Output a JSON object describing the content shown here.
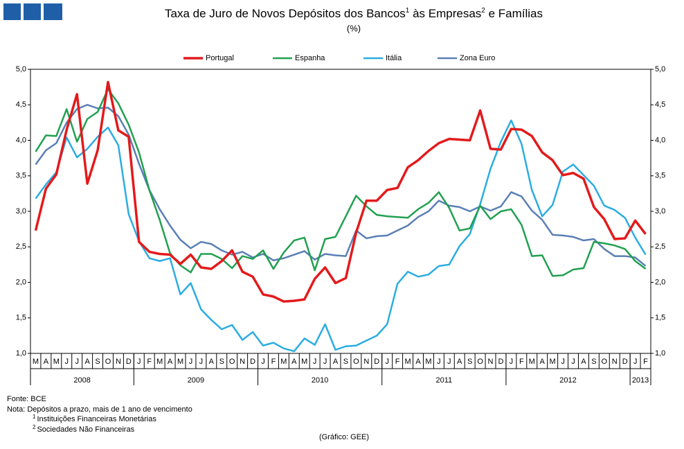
{
  "chart_data": {
    "type": "line",
    "title_parts": [
      "Taxa de Juro de Novos Depósitos dos Bancos",
      "1",
      " às Empresas",
      "2",
      " e Famílias"
    ],
    "subtitle": "(%)",
    "categories": [
      "M",
      "A",
      "M",
      "J",
      "J",
      "A",
      "S",
      "O",
      "N",
      "D",
      "J",
      "F",
      "M",
      "A",
      "M",
      "J",
      "J",
      "A",
      "S",
      "O",
      "N",
      "D",
      "J",
      "F",
      "M",
      "A",
      "M",
      "J",
      "J",
      "A",
      "S",
      "O",
      "N",
      "D",
      "J",
      "F",
      "M",
      "A",
      "M",
      "J",
      "J",
      "A",
      "S",
      "O",
      "N",
      "D",
      "J",
      "F",
      "M",
      "A",
      "M",
      "J",
      "J",
      "A",
      "S",
      "O",
      "N",
      "D",
      "J",
      "F"
    ],
    "years": [
      {
        "label": "2008",
        "months": 10
      },
      {
        "label": "2009",
        "months": 12
      },
      {
        "label": "2010",
        "months": 12
      },
      {
        "label": "2011",
        "months": 12
      },
      {
        "label": "2012",
        "months": 12
      },
      {
        "label": "2013",
        "months": 2
      }
    ],
    "series": [
      {
        "name": "Portugal",
        "color": "#e31a1c",
        "values": [
          2.73,
          3.32,
          3.52,
          4.15,
          4.65,
          3.39,
          3.86,
          4.82,
          4.14,
          4.05,
          2.57,
          2.43,
          2.4,
          2.39,
          2.26,
          2.39,
          2.21,
          2.19,
          2.3,
          2.45,
          2.15,
          2.08,
          1.83,
          1.8,
          1.73,
          1.74,
          1.76,
          2.05,
          2.21,
          1.99,
          2.06,
          2.7,
          3.15,
          3.15,
          3.3,
          3.33,
          3.62,
          3.72,
          3.85,
          3.96,
          4.02,
          4.01,
          4.0,
          4.42,
          3.88,
          3.87,
          4.16,
          4.15,
          4.06,
          3.83,
          3.72,
          3.51,
          3.54,
          3.46,
          3.06,
          2.89,
          2.61,
          2.62,
          2.87,
          2.68
        ]
      },
      {
        "name": "Espanha",
        "color": "#21a050",
        "values": [
          3.84,
          4.07,
          4.06,
          4.44,
          3.98,
          4.3,
          4.4,
          4.72,
          4.52,
          4.22,
          3.83,
          3.3,
          2.88,
          2.41,
          2.24,
          2.14,
          2.4,
          2.4,
          2.33,
          2.2,
          2.37,
          2.33,
          2.45,
          2.19,
          2.42,
          2.59,
          2.63,
          2.17,
          2.61,
          2.64,
          2.93,
          3.22,
          3.07,
          2.95,
          2.93,
          2.92,
          2.91,
          3.03,
          3.12,
          3.27,
          3.05,
          2.73,
          2.76,
          3.08,
          2.89,
          3.0,
          3.03,
          2.81,
          2.37,
          2.38,
          2.09,
          2.1,
          2.18,
          2.2,
          2.57,
          2.55,
          2.52,
          2.47,
          2.3,
          2.19
        ]
      },
      {
        "name": "Itália",
        "color": "#2aace2",
        "values": [
          3.18,
          3.38,
          3.55,
          4.04,
          3.76,
          3.88,
          4.05,
          4.18,
          3.93,
          2.96,
          2.58,
          2.34,
          2.3,
          2.34,
          1.83,
          1.99,
          1.62,
          1.47,
          1.34,
          1.4,
          1.19,
          1.3,
          1.11,
          1.15,
          1.07,
          1.03,
          1.21,
          1.12,
          1.41,
          1.05,
          1.1,
          1.11,
          1.18,
          1.25,
          1.41,
          1.98,
          2.15,
          2.08,
          2.11,
          2.23,
          2.25,
          2.51,
          2.68,
          3.1,
          3.6,
          3.98,
          4.28,
          3.95,
          3.3,
          2.93,
          3.09,
          3.56,
          3.66,
          3.51,
          3.36,
          3.08,
          3.02,
          2.91,
          2.63,
          2.39
        ]
      },
      {
        "name": "Zona Euro",
        "color": "#5a7fb5",
        "values": [
          3.66,
          3.86,
          3.96,
          4.25,
          4.44,
          4.5,
          4.45,
          4.46,
          4.34,
          4.08,
          3.67,
          3.3,
          3.03,
          2.8,
          2.6,
          2.48,
          2.57,
          2.54,
          2.45,
          2.39,
          2.43,
          2.35,
          2.4,
          2.31,
          2.34,
          2.39,
          2.44,
          2.32,
          2.4,
          2.38,
          2.37,
          2.73,
          2.62,
          2.65,
          2.66,
          2.73,
          2.8,
          2.92,
          3.0,
          3.15,
          3.08,
          3.06,
          3.0,
          3.07,
          3.01,
          3.07,
          3.27,
          3.21,
          3.01,
          2.88,
          2.67,
          2.66,
          2.64,
          2.59,
          2.61,
          2.47,
          2.37,
          2.37,
          2.35,
          2.23
        ]
      }
    ],
    "ylim": [
      1,
      5
    ],
    "yticks": [
      {
        "value": 1,
        "label": "1,0"
      },
      {
        "value": 1.5,
        "label": "1,5"
      },
      {
        "value": 2,
        "label": "2,0"
      },
      {
        "value": 2.5,
        "label": "2,5"
      },
      {
        "value": 3,
        "label": "3,0"
      },
      {
        "value": 3.5,
        "label": "3,5"
      },
      {
        "value": 4,
        "label": "4,0"
      },
      {
        "value": 4.5,
        "label": "4,5"
      },
      {
        "value": 5,
        "label": "5,0"
      }
    ],
    "y2lim": [
      1,
      5
    ],
    "y2ticks": [
      {
        "value": 1,
        "label": "1,0"
      },
      {
        "value": 1.5,
        "label": "1,5"
      },
      {
        "value": 2,
        "label": "2,0"
      },
      {
        "value": 2.5,
        "label": "2,5"
      },
      {
        "value": 3,
        "label": "3,0"
      },
      {
        "value": 3.5,
        "label": "3,5"
      },
      {
        "value": 4,
        "label": "4,0"
      },
      {
        "value": 4.5,
        "label": "4,5"
      },
      {
        "value": 5,
        "label": "5,0"
      }
    ],
    "grid": false,
    "legend": "top",
    "source": "Fonte: BCE",
    "note": "Nota: Depósitos a prazo, mais de 1 ano de vencimento",
    "footnotes": [
      {
        "mark": "1",
        "text": "Instituições Financeiras Monetárias"
      },
      {
        "mark": "2",
        "text": "Sociedades Não Financeiras"
      }
    ],
    "credit": "(Gráfico: GEE)"
  }
}
